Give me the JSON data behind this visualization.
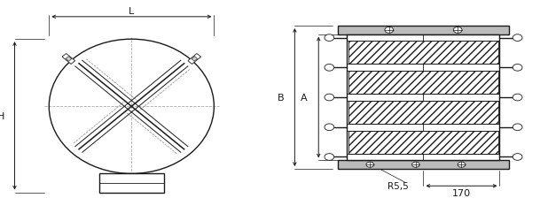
{
  "bg_color": "#ffffff",
  "line_color": "#1a1a1a",
  "dim_color": "#1a1a1a",
  "gray_fill": "#cccccc",
  "label_L": "L",
  "label_H": "H",
  "label_A": "A",
  "label_B": "B",
  "label_R": "R5,5",
  "label_170": "170"
}
